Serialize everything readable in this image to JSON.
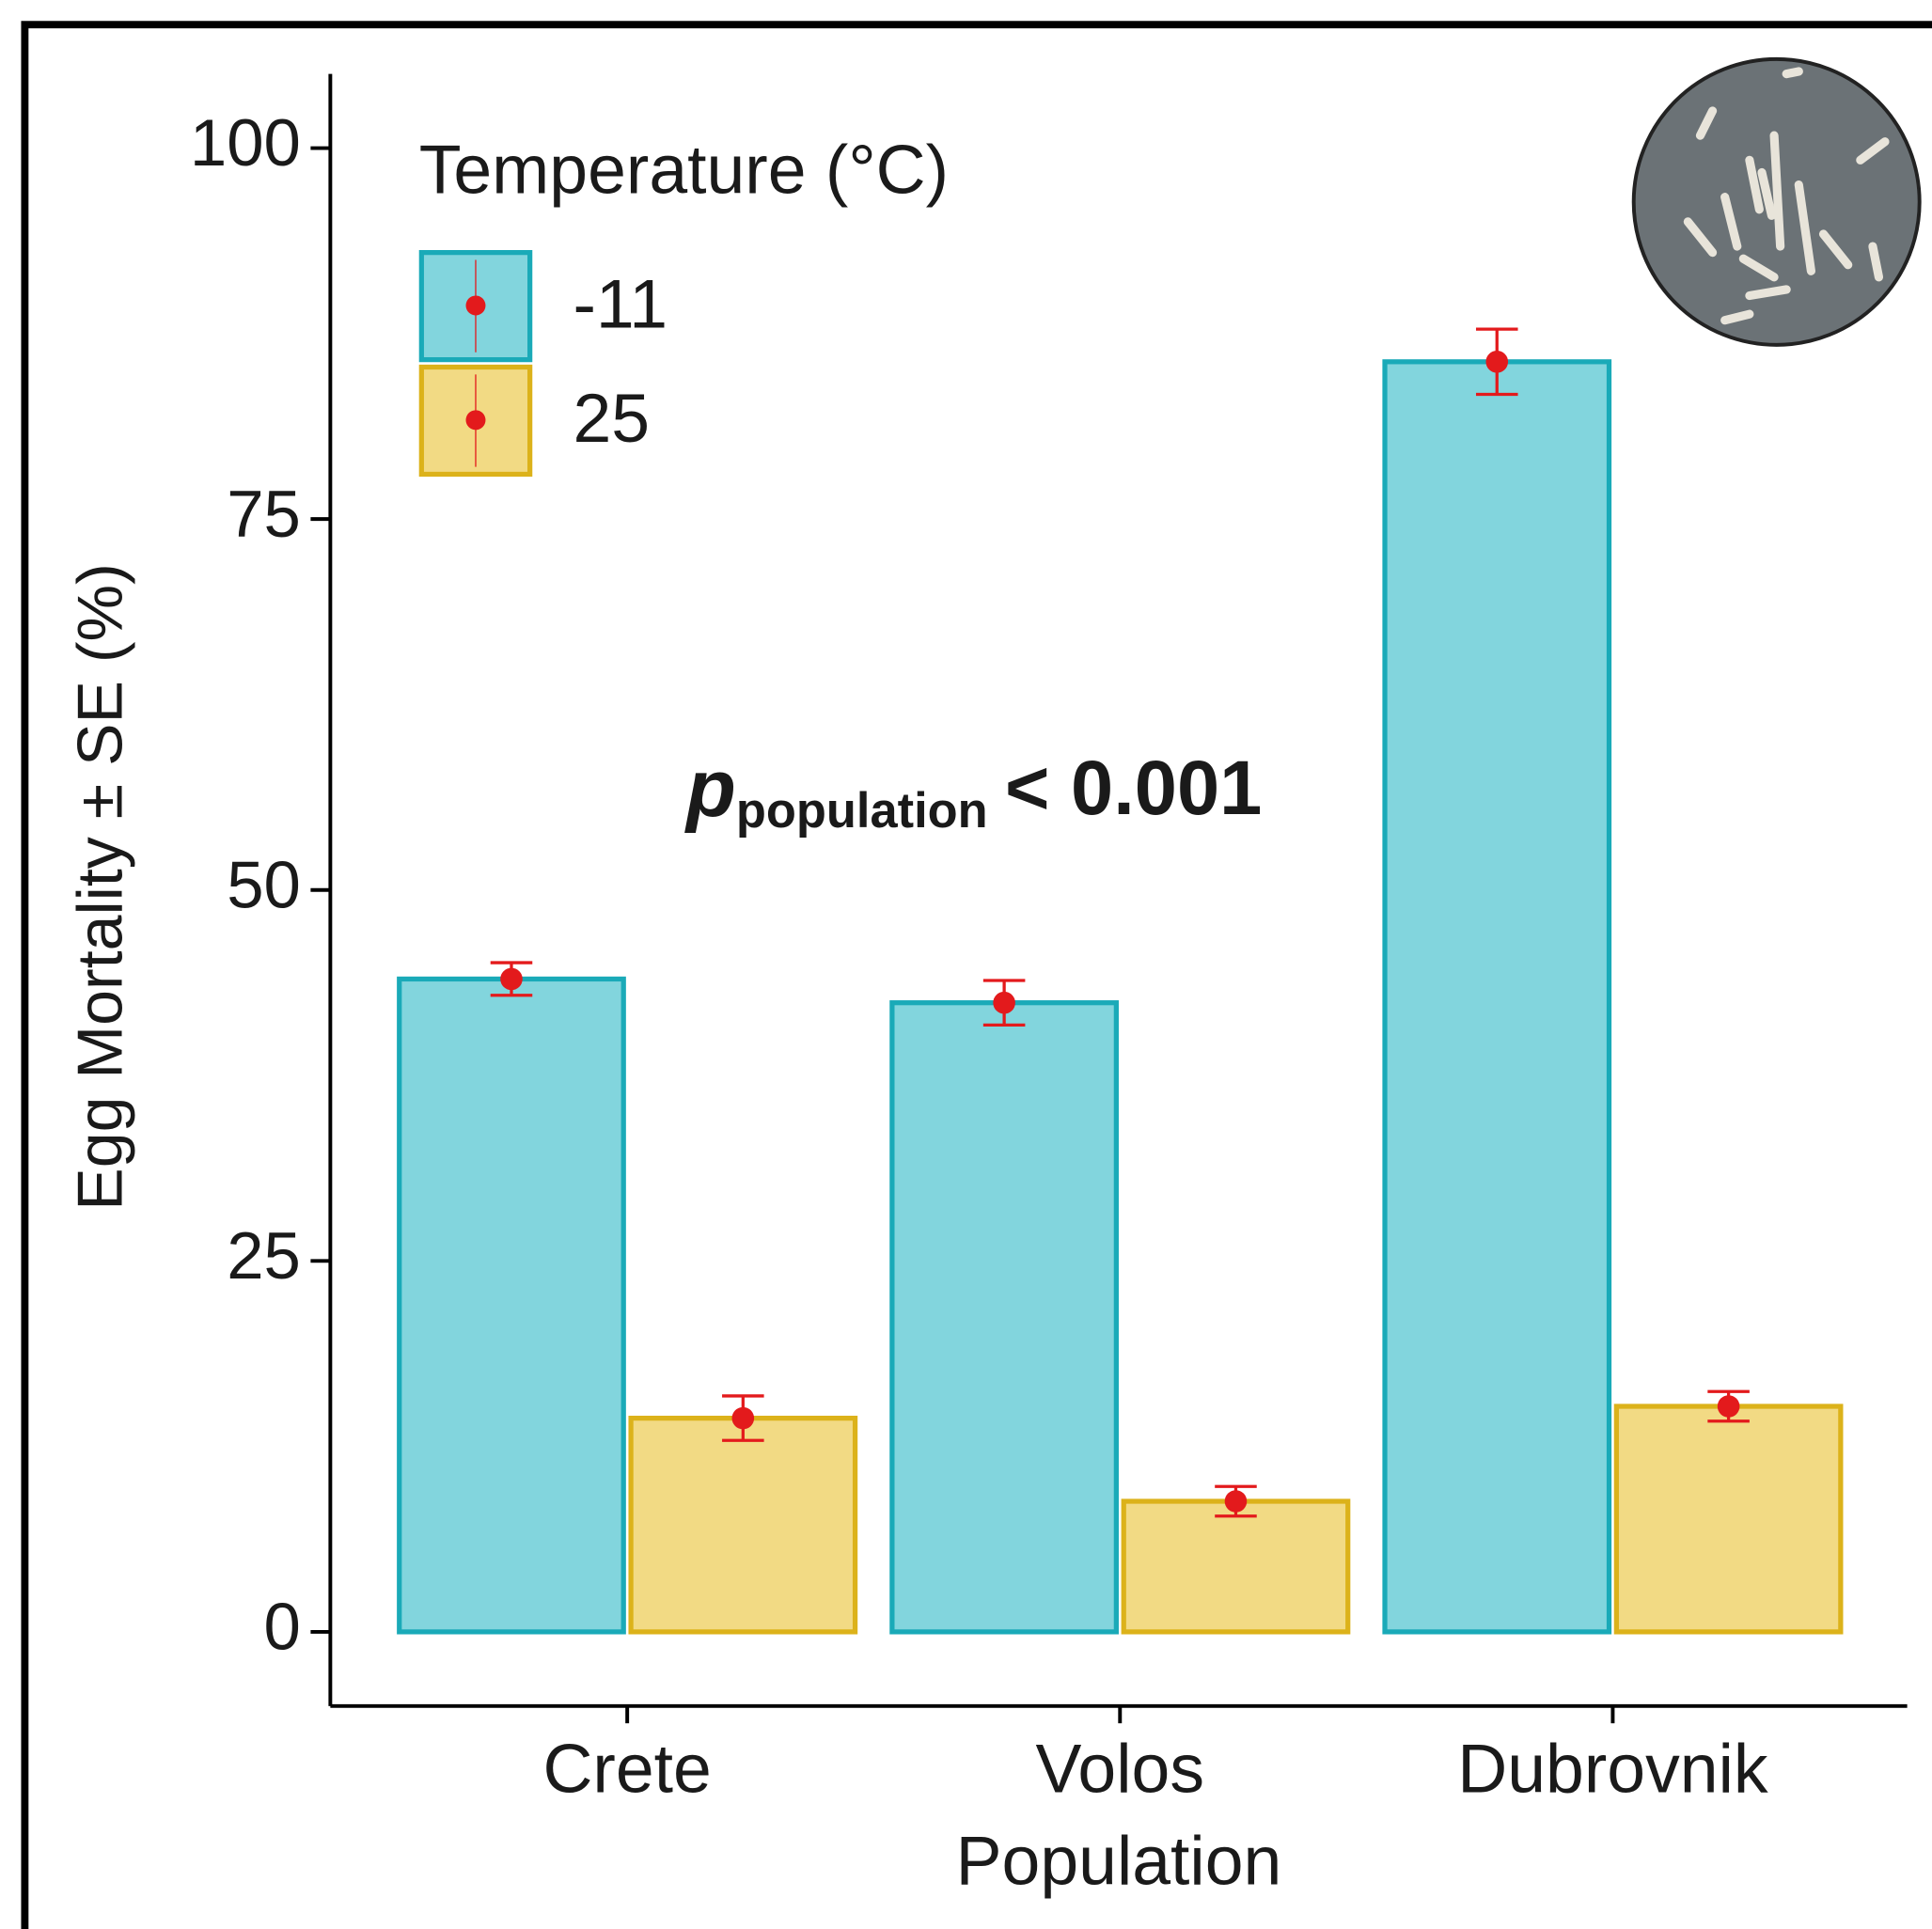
{
  "chart_data": {
    "type": "bar",
    "annotation": {
      "p": "p",
      "subscript": "population",
      "text": "< 0.001"
    },
    "x_label": "Population",
    "y_label": "Egg Mortality ± SE (%)",
    "legend_title": "Temperature (°C)",
    "legend_position": "upper left",
    "categories": [
      "Crete",
      "Volos",
      "Dubrovnik"
    ],
    "series": [
      {
        "name": "-11",
        "color": "#82d5dd",
        "edgecolor": "#1aaab8",
        "values": [
          44,
          42.4,
          85.6
        ],
        "errors": [
          1.1,
          1.5,
          2.2
        ]
      },
      {
        "name": "25",
        "color": "#f2da84",
        "edgecolor": "#dcb21a",
        "values": [
          14.4,
          8.8,
          15.2
        ],
        "errors": [
          1.5,
          1.0,
          1.0
        ]
      }
    ],
    "error_color": "#e31a1c",
    "ylim": [
      -5,
      105
    ],
    "yticks": [
      0,
      25,
      50,
      75,
      100
    ]
  }
}
